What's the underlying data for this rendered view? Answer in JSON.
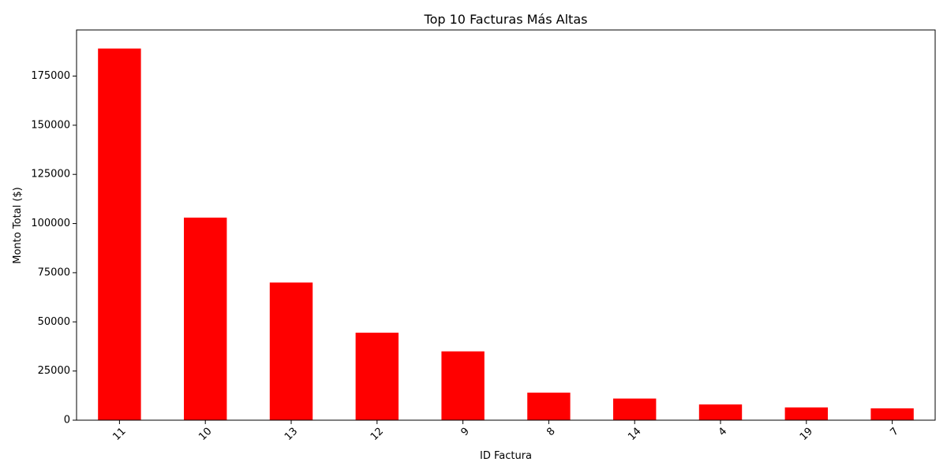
{
  "chart_data": {
    "type": "bar",
    "title": "Top 10 Facturas Más Altas",
    "xlabel": "ID Factura",
    "ylabel": "Monto Total ($)",
    "categories": [
      "11",
      "10",
      "13",
      "12",
      "9",
      "8",
      "14",
      "4",
      "19",
      "7"
    ],
    "values": [
      189000,
      103000,
      70000,
      44500,
      35000,
      14000,
      11000,
      8000,
      6500,
      6000
    ],
    "ylim": [
      0,
      198450
    ],
    "yticks": [
      0,
      25000,
      50000,
      75000,
      100000,
      125000,
      150000,
      175000
    ],
    "ytick_labels": [
      "0",
      "25000",
      "50000",
      "75000",
      "100000",
      "125000",
      "150000",
      "175000"
    ],
    "bar_color": "#ff0000",
    "grid": false,
    "legend": false
  }
}
